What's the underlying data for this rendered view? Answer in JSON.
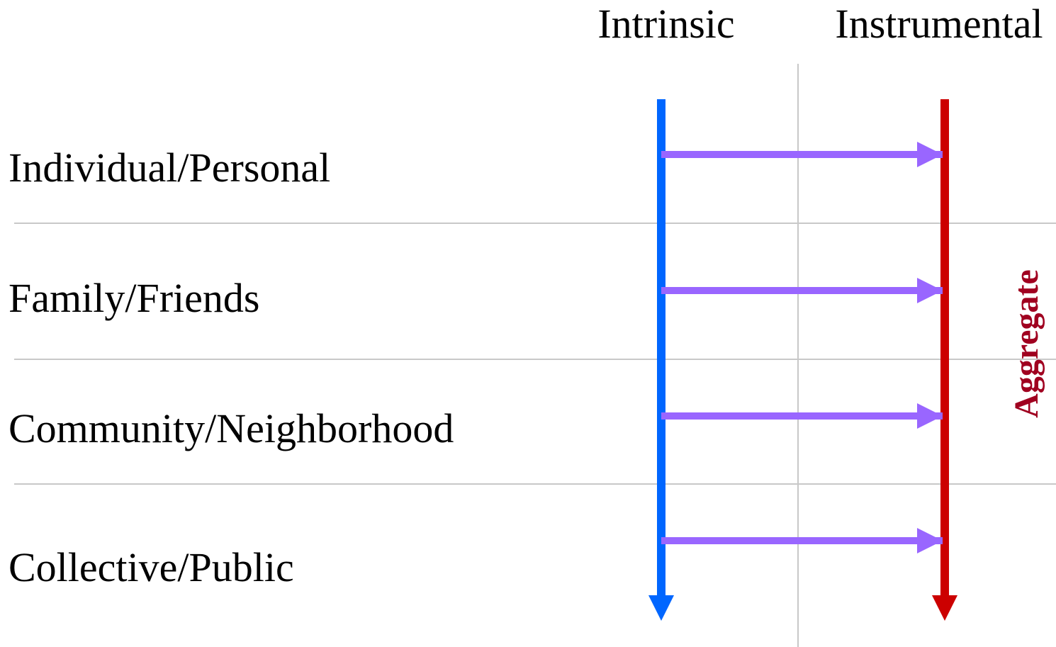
{
  "columns": [
    "Intrinsic",
    "Instrumental"
  ],
  "rows": [
    "Individual/Personal",
    "Family/Friends",
    "Community/Neighborhood",
    "Collective/Public"
  ],
  "side_label": "Aggregate"
}
